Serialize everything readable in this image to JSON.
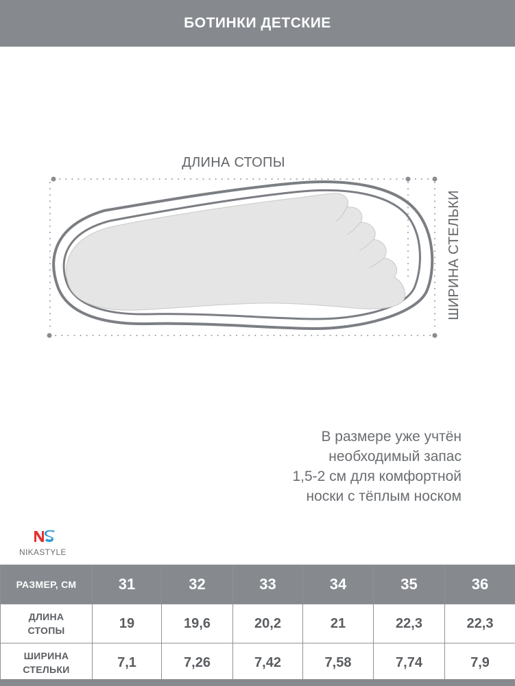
{
  "header": {
    "title": "БОТИНКИ ДЕТСКИЕ"
  },
  "diagram": {
    "foot_length_label": "ДЛИНА СТОПЫ",
    "insole_width_label": "ШИРИНА СТЕЛЬКИ"
  },
  "note": {
    "lines": [
      "В размере уже учтён",
      "необходимый запас",
      "1,5-2 см для комфортной",
      "носки с тёплым носком"
    ]
  },
  "brand": {
    "name": "NIKASTYLE",
    "colors": {
      "red": "#e4332f",
      "blue": "#2f9bd6"
    }
  },
  "table": {
    "corner_label": "РАЗМЕР, СМ",
    "sizes": [
      "31",
      "32",
      "33",
      "34",
      "35",
      "36"
    ],
    "rows": [
      {
        "label_line1": "ДЛИНА",
        "label_line2": "СТОПЫ",
        "values": [
          "19",
          "19,6",
          "20,2",
          "21",
          "22,3",
          "22,3"
        ]
      },
      {
        "label_line1": "ШИРИНА",
        "label_line2": "СТЕЛЬКИ",
        "values": [
          "7,1",
          "7,26",
          "7,42",
          "7,58",
          "7,74",
          "7,9"
        ]
      }
    ]
  },
  "colors": {
    "bar": "#868a8f",
    "text_gray": "#626569",
    "outline": "#7b7e83",
    "foot_fill": "#e5e5e5"
  }
}
